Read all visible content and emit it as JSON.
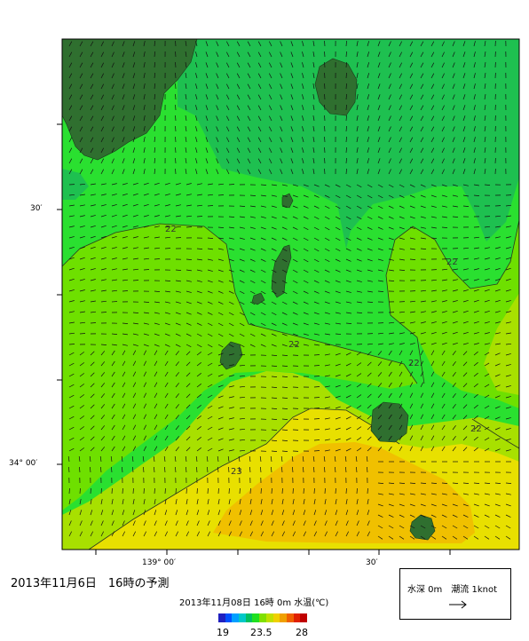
{
  "title": "2013年11月6日　16時の予測",
  "caption": "2013年11月08日 16時 0m 水温(℃)",
  "legend": {
    "label": "水深 0m　潮流 1knot"
  },
  "colorbar": {
    "tick_min": "19",
    "tick_mid": "23.5",
    "tick_max": "28",
    "colors": [
      "#2020c0",
      "#0050ff",
      "#00a0ff",
      "#00c8c8",
      "#00c060",
      "#20e020",
      "#80e000",
      "#c0e000",
      "#f0d000",
      "#f0a000",
      "#f06000",
      "#e02000",
      "#c00000"
    ]
  },
  "axes": {
    "lat_30": "30′",
    "lat_34_00": "34° 00′",
    "lon_139_00": "139° 00′",
    "lon_30": "30′"
  },
  "contours": {
    "c22a": "22",
    "c22b": "22",
    "c22c": "22",
    "c22d": "22",
    "c22e": "22",
    "c23": "23"
  },
  "colors": {
    "land": "#2f6f2f",
    "sea_21": "#1ec050",
    "sea_215": "#2ae030",
    "sea_22": "#6ee000",
    "sea_225": "#a8e000",
    "sea_23": "#e8e000",
    "sea_235": "#f0c000",
    "sea_24": "#f0b000"
  }
}
